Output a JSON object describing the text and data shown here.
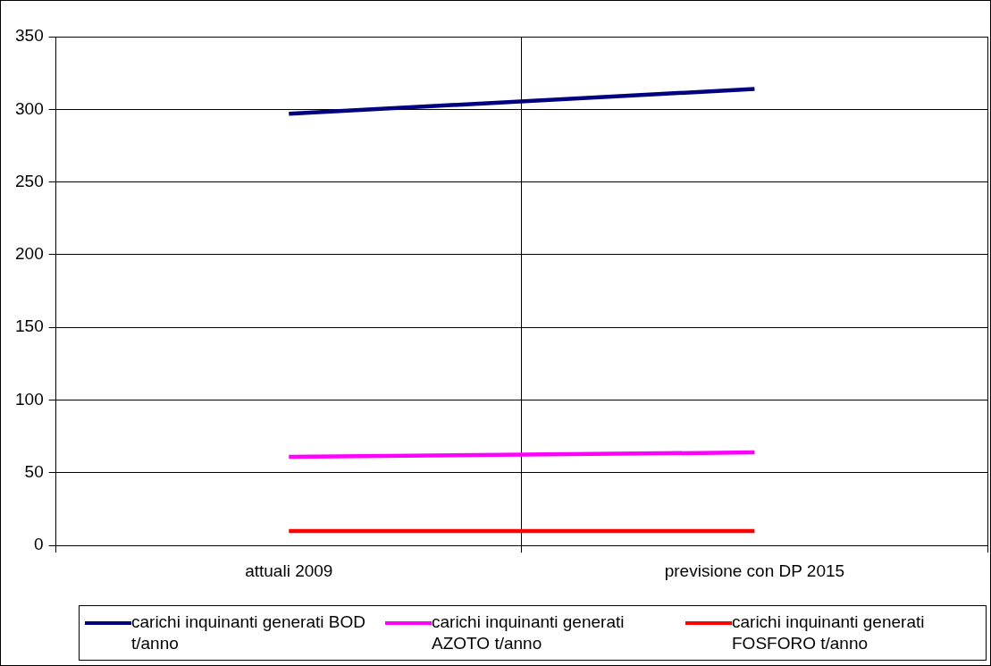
{
  "chart_data": {
    "type": "line",
    "categories": [
      "attuali 2009",
      "previsione con DP 2015"
    ],
    "series": [
      {
        "name": "carichi inquinanti generati BOD t/anno",
        "color": "#000080",
        "values": [
          297,
          314
        ]
      },
      {
        "name": "carichi inquinanti generati AZOTO t/anno",
        "color": "#ff00ff",
        "values": [
          61,
          64
        ]
      },
      {
        "name": "carichi inquinanti generati FOSFORO t/anno",
        "color": "#ff0000",
        "values": [
          10,
          10
        ]
      }
    ],
    "ylim": [
      0,
      350
    ],
    "yticks": [
      0,
      50,
      100,
      150,
      200,
      250,
      300,
      350
    ],
    "grid": true,
    "legend": "bottom",
    "marker": "none",
    "line_style": "solid"
  }
}
